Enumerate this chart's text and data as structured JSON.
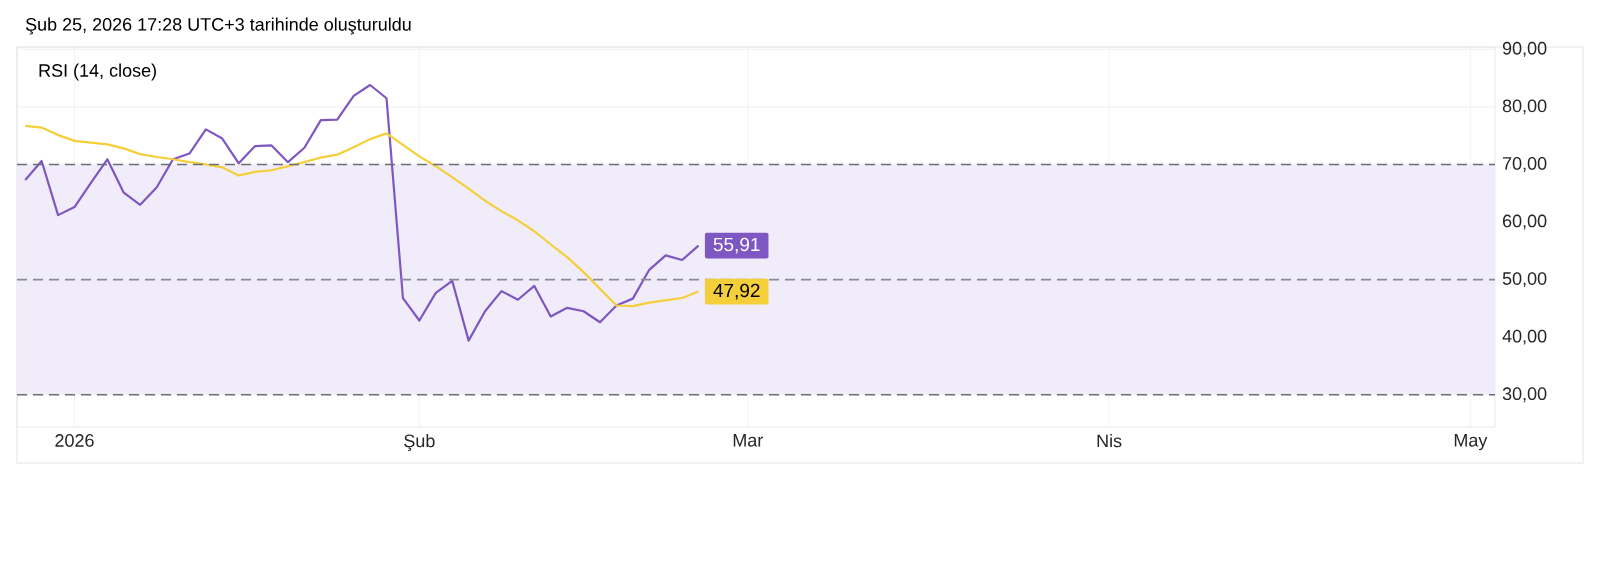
{
  "chart_data": {
    "type": "line",
    "title": "Şub 25, 2026 17:28 UTC+3 tarihinde oluşturuldu",
    "subtitle": "RSI (14, close)",
    "categories": [
      null,
      null,
      null,
      "2026",
      null,
      null,
      null,
      null,
      null,
      null,
      null,
      null,
      null,
      null,
      null,
      null,
      null,
      null,
      null,
      null,
      null,
      null,
      null,
      null,
      "Şub",
      null,
      null,
      null,
      null,
      null,
      null,
      null,
      null,
      null,
      null,
      null,
      null,
      null,
      null,
      null,
      null,
      null,
      null,
      null,
      "Mar",
      null,
      null,
      null,
      null,
      null,
      null,
      null,
      null,
      null,
      null,
      null,
      null,
      null,
      null,
      null,
      null,
      null,
      null,
      null,
      null,
      null,
      "Nis",
      null,
      null,
      null,
      null,
      null,
      null,
      null,
      null,
      null,
      null,
      null,
      null,
      null,
      null,
      null,
      null,
      null,
      null,
      null,
      null,
      null,
      "May",
      null
    ],
    "series": [
      {
        "color": "#7e57c2",
        "values": [
          67.3,
          70.6,
          61.2,
          62.6,
          66.8,
          70.9,
          65.1,
          63.0,
          66.0,
          70.9,
          71.9,
          76.1,
          74.5,
          70.2,
          73.2,
          73.3,
          70.4,
          72.9,
          77.7,
          77.8,
          81.9,
          83.8,
          81.5,
          46.8,
          42.9,
          47.7,
          49.8,
          39.4,
          44.5,
          48.0,
          46.5,
          48.9,
          43.6,
          45.1,
          44.5,
          42.6,
          45.5,
          46.7,
          51.7,
          54.2,
          53.4,
          55.91,
          null,
          null,
          null,
          null,
          null,
          null,
          null,
          null,
          null,
          null,
          null,
          null,
          null,
          null,
          null,
          null,
          null,
          null,
          null,
          null,
          null,
          null,
          null,
          null,
          null,
          null,
          null,
          null,
          null,
          null,
          null,
          null,
          null,
          null,
          null,
          null,
          null,
          null,
          null,
          null,
          null,
          null,
          null,
          null,
          null,
          null,
          null,
          null
        ],
        "value_labels": [
          null,
          null,
          null,
          null,
          null,
          null,
          null,
          null,
          null,
          null,
          null,
          null,
          null,
          null,
          null,
          null,
          null,
          null,
          null,
          null,
          null,
          null,
          null,
          null,
          null,
          null,
          null,
          null,
          null,
          null,
          null,
          null,
          null,
          null,
          null,
          null,
          null,
          null,
          null,
          null,
          null,
          "55,91",
          null,
          null,
          null,
          null,
          null,
          null,
          null,
          null,
          null,
          null,
          null,
          null,
          null,
          null,
          null,
          null,
          null,
          null,
          null,
          null,
          null,
          null,
          null,
          null,
          null,
          null,
          null,
          null,
          null,
          null,
          null,
          null,
          null,
          null,
          null,
          null,
          null,
          null,
          null,
          null,
          null,
          null,
          null,
          null,
          null,
          null,
          null,
          null
        ]
      },
      {
        "color": "#f5cf3a",
        "values": [
          76.7,
          76.4,
          75.1,
          74.1,
          73.8,
          73.5,
          72.8,
          71.8,
          71.3,
          70.9,
          70.4,
          70.0,
          69.5,
          68.1,
          68.7,
          69.0,
          69.7,
          70.4,
          71.2,
          71.7,
          73.0,
          74.4,
          75.4,
          73.4,
          71.4,
          69.7,
          67.8,
          65.8,
          63.7,
          61.9,
          60.3,
          58.4,
          56.1,
          53.9,
          51.3,
          48.4,
          45.5,
          45.4,
          46.0,
          46.4,
          46.8,
          47.92,
          null,
          null,
          null,
          null,
          null,
          null,
          null,
          null,
          null,
          null,
          null,
          null,
          null,
          null,
          null,
          null,
          null,
          null,
          null,
          null,
          null,
          null,
          null,
          null,
          null,
          null,
          null,
          null,
          null,
          null,
          null,
          null,
          null,
          null,
          null,
          null,
          null,
          null,
          null,
          null,
          null,
          null,
          null,
          null,
          null,
          null,
          null,
          null
        ],
        "value_labels": [
          null,
          null,
          null,
          null,
          null,
          null,
          null,
          null,
          null,
          null,
          null,
          null,
          null,
          null,
          null,
          null,
          null,
          null,
          null,
          null,
          null,
          null,
          null,
          null,
          null,
          null,
          null,
          null,
          null,
          null,
          null,
          null,
          null,
          null,
          null,
          null,
          null,
          null,
          null,
          null,
          null,
          "47,92",
          null,
          null,
          null,
          null,
          null,
          null,
          null,
          null,
          null,
          null,
          null,
          null,
          null,
          null,
          null,
          null,
          null,
          null,
          null,
          null,
          null,
          null,
          null,
          null,
          null,
          null,
          null,
          null,
          null,
          null,
          null,
          null,
          null,
          null,
          null,
          null,
          null,
          null,
          null,
          null,
          null,
          null,
          null,
          null,
          null,
          null,
          null,
          null
        ]
      }
    ],
    "ylim": [
      24.4,
      90.4
    ],
    "yticks": [
      {
        "value": 30,
        "label": "30,00"
      },
      {
        "value": 40,
        "label": "40,00"
      },
      {
        "value": 50,
        "label": "50,00"
      },
      {
        "value": 60,
        "label": "60,00"
      },
      {
        "value": 70,
        "label": "70,00"
      },
      {
        "value": 80,
        "label": "80,00"
      },
      {
        "value": 90,
        "label": "90,00"
      }
    ],
    "bands": [
      {
        "axis": "y",
        "from": 30,
        "to": 70,
        "color": "#f0ecf9"
      }
    ],
    "ref_lines": [
      {
        "axis": "y",
        "value": 70,
        "color": "#6a6d78",
        "line_style": "dashed"
      },
      {
        "axis": "y",
        "value": 50,
        "color": "#8a8d97",
        "line_style": "dashed"
      },
      {
        "axis": "y",
        "value": 30,
        "color": "#6a6d78",
        "line_style": "dashed"
      }
    ],
    "grid": true
  }
}
